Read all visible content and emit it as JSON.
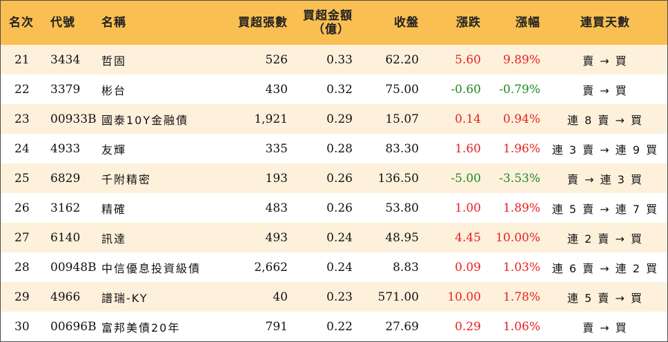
{
  "header": {
    "rank": "名次",
    "code": "代號",
    "name": "名稱",
    "volume": "買超張數",
    "amount_line1": "買超金額",
    "amount_line2": "（億）",
    "close": "收盤",
    "change": "漲跌",
    "change_pct": "漲幅",
    "days": "連買天數"
  },
  "colors": {
    "header_bg": "#f9bf52",
    "odd_row_bg": "#fdf1dc",
    "up": "#e8201e",
    "down": "#1e8a22"
  },
  "rows": [
    {
      "rank": "21",
      "code": "3434",
      "name": "哲固",
      "volume": "526",
      "amount": "0.33",
      "close": "62.20",
      "change": "5.60",
      "pct": "9.89%",
      "days": "賣 → 買",
      "dir": "up"
    },
    {
      "rank": "22",
      "code": "3379",
      "name": "彬台",
      "volume": "430",
      "amount": "0.32",
      "close": "75.00",
      "change": "-0.60",
      "pct": "-0.79%",
      "days": "賣 → 買",
      "dir": "down"
    },
    {
      "rank": "23",
      "code": "00933B",
      "name": "國泰10Y金融債",
      "volume": "1,921",
      "amount": "0.29",
      "close": "15.07",
      "change": "0.14",
      "pct": "0.94%",
      "days": "連 8 賣 → 買",
      "dir": "up"
    },
    {
      "rank": "24",
      "code": "4933",
      "name": "友輝",
      "volume": "335",
      "amount": "0.28",
      "close": "83.30",
      "change": "1.60",
      "pct": "1.96%",
      "days": "連 3 賣 → 連 9 買",
      "dir": "up"
    },
    {
      "rank": "25",
      "code": "6829",
      "name": "千附精密",
      "volume": "193",
      "amount": "0.26",
      "close": "136.50",
      "change": "-5.00",
      "pct": "-3.53%",
      "days": "賣 → 連 3 買",
      "dir": "down"
    },
    {
      "rank": "26",
      "code": "3162",
      "name": "精確",
      "volume": "483",
      "amount": "0.26",
      "close": "53.80",
      "change": "1.00",
      "pct": "1.89%",
      "days": "連 5 賣 → 連 7 買",
      "dir": "up"
    },
    {
      "rank": "27",
      "code": "6140",
      "name": "訊達",
      "volume": "493",
      "amount": "0.24",
      "close": "48.95",
      "change": "4.45",
      "pct": "10.00%",
      "days": "連 2 賣 → 買",
      "dir": "up"
    },
    {
      "rank": "28",
      "code": "00948B",
      "name": "中信優息投資級債",
      "volume": "2,662",
      "amount": "0.24",
      "close": "8.83",
      "change": "0.09",
      "pct": "1.03%",
      "days": "連 6 賣 → 連 2 買",
      "dir": "up"
    },
    {
      "rank": "29",
      "code": "4966",
      "name": "譜瑞-KY",
      "volume": "40",
      "amount": "0.23",
      "close": "571.00",
      "change": "10.00",
      "pct": "1.78%",
      "days": "連 5 賣 → 買",
      "dir": "up"
    },
    {
      "rank": "30",
      "code": "00696B",
      "name": "富邦美債20年",
      "volume": "791",
      "amount": "0.22",
      "close": "27.69",
      "change": "0.29",
      "pct": "1.06%",
      "days": "賣 → 買",
      "dir": "up"
    }
  ]
}
